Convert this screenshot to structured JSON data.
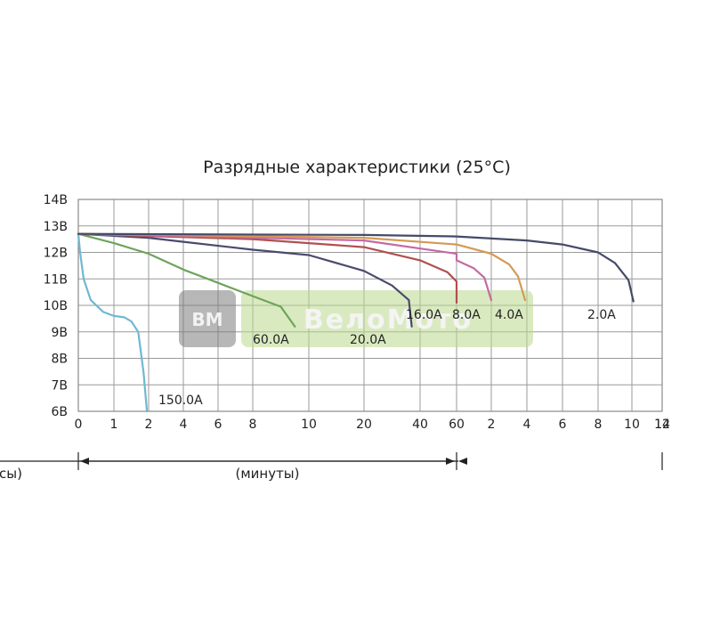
{
  "chart_data": {
    "type": "line",
    "title": "Разрядные характеристики (25°C)",
    "y_ticks": [
      "6В",
      "7В",
      "8В",
      "9В",
      "10В",
      "11В",
      "12В",
      "13В",
      "14В"
    ],
    "ylim": [
      6,
      14
    ],
    "x_ticks": [
      "0",
      "1",
      "2",
      "4",
      "6",
      "8",
      "10",
      "20",
      "40",
      "60",
      "2",
      "4",
      "6",
      "8",
      "10",
      "12",
      "14"
    ],
    "x_ranges": [
      {
        "label": "(минуты)",
        "from_tick": 0,
        "to_tick": 9
      },
      {
        "label": "(часы)",
        "from_tick": 9,
        "to_tick": 16
      }
    ],
    "grid": true,
    "series": [
      {
        "name": "150.0A",
        "color": "#6fb8d2",
        "x": [
          0,
          0.05,
          0.15,
          0.35,
          0.7,
          1.0,
          1.3,
          1.5,
          1.7,
          1.85,
          1.95
        ],
        "y": [
          12.7,
          12.0,
          11.0,
          10.2,
          9.75,
          9.6,
          9.55,
          9.4,
          9.0,
          7.5,
          6.0
        ]
      },
      {
        "name": "60.0A",
        "color": "#6ea35c",
        "x": [
          0,
          1,
          2,
          4,
          6,
          8,
          9,
          9.5
        ],
        "y": [
          12.7,
          12.35,
          11.95,
          11.35,
          10.85,
          10.35,
          9.95,
          9.2
        ]
      },
      {
        "name": "20.0A",
        "color": "#4a4a6e",
        "x": [
          0,
          2,
          4,
          8,
          10,
          20,
          30,
          36,
          37
        ],
        "y": [
          12.7,
          12.55,
          12.4,
          12.1,
          11.9,
          11.3,
          10.75,
          10.2,
          9.2
        ]
      },
      {
        "name": "16.0A",
        "color": "#b0504f",
        "x": [
          0,
          2,
          8,
          20,
          40,
          55,
          61,
          63
        ],
        "y": [
          12.7,
          12.62,
          12.5,
          12.2,
          11.7,
          11.25,
          10.9,
          10.1
        ]
      },
      {
        "name": "8.0A",
        "color": "#c46aa3",
        "x": [
          0,
          4,
          20,
          60,
          1.0,
          1.5,
          1.8,
          2.0
        ],
        "y": [
          12.7,
          12.62,
          12.45,
          11.95,
          11.7,
          11.4,
          11.05,
          10.2
        ]
      },
      {
        "name": "4.0A",
        "color": "#d49a55",
        "x": [
          0,
          4,
          20,
          60,
          2.0,
          3.0,
          3.5,
          3.9
        ],
        "y": [
          12.7,
          12.65,
          12.55,
          12.3,
          11.95,
          11.55,
          11.1,
          10.2
        ]
      },
      {
        "name": "2.0A",
        "color": "#454a68",
        "x": [
          0,
          20,
          60,
          4,
          6,
          8,
          9,
          9.8,
          10.1
        ],
        "y": [
          12.7,
          12.66,
          12.6,
          12.45,
          12.3,
          12.0,
          11.6,
          10.95,
          10.15
        ]
      }
    ]
  },
  "watermark": {
    "badge": "BM",
    "text": "ВелоМото"
  }
}
